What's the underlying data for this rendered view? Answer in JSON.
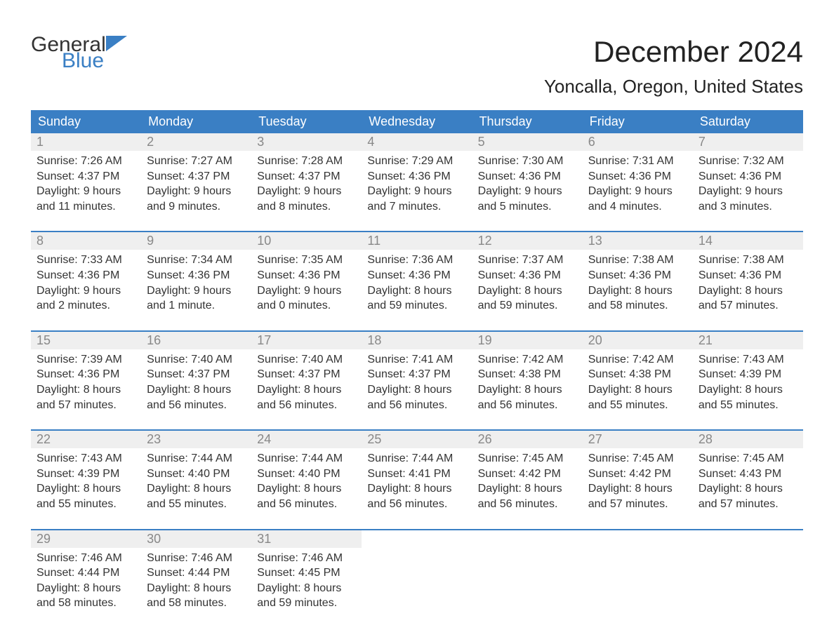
{
  "brand": {
    "word1": "General",
    "word2": "Blue",
    "color1": "#333333",
    "color2": "#3a7fc4"
  },
  "title": "December 2024",
  "location": "Yoncalla, Oregon, United States",
  "colors": {
    "header_bg": "#3a7fc4",
    "header_text": "#ffffff",
    "daynum_bg": "#efefef",
    "daynum_text": "#888888",
    "body_text": "#333333",
    "accent_line": "#3a7fc4"
  },
  "fonts": {
    "title_pt": 42,
    "location_pt": 26,
    "header_pt": 18,
    "daynum_pt": 18,
    "body_pt": 16
  },
  "columns": [
    "Sunday",
    "Monday",
    "Tuesday",
    "Wednesday",
    "Thursday",
    "Friday",
    "Saturday"
  ],
  "weeks": [
    [
      {
        "n": 1,
        "sunrise": "7:26 AM",
        "sunset": "4:37 PM",
        "dl_h": 9,
        "dl_m": "11 minutes"
      },
      {
        "n": 2,
        "sunrise": "7:27 AM",
        "sunset": "4:37 PM",
        "dl_h": 9,
        "dl_m": "9 minutes"
      },
      {
        "n": 3,
        "sunrise": "7:28 AM",
        "sunset": "4:37 PM",
        "dl_h": 9,
        "dl_m": "8 minutes"
      },
      {
        "n": 4,
        "sunrise": "7:29 AM",
        "sunset": "4:36 PM",
        "dl_h": 9,
        "dl_m": "7 minutes"
      },
      {
        "n": 5,
        "sunrise": "7:30 AM",
        "sunset": "4:36 PM",
        "dl_h": 9,
        "dl_m": "5 minutes"
      },
      {
        "n": 6,
        "sunrise": "7:31 AM",
        "sunset": "4:36 PM",
        "dl_h": 9,
        "dl_m": "4 minutes"
      },
      {
        "n": 7,
        "sunrise": "7:32 AM",
        "sunset": "4:36 PM",
        "dl_h": 9,
        "dl_m": "3 minutes"
      }
    ],
    [
      {
        "n": 8,
        "sunrise": "7:33 AM",
        "sunset": "4:36 PM",
        "dl_h": 9,
        "dl_m": "2 minutes"
      },
      {
        "n": 9,
        "sunrise": "7:34 AM",
        "sunset": "4:36 PM",
        "dl_h": 9,
        "dl_m": "1 minute"
      },
      {
        "n": 10,
        "sunrise": "7:35 AM",
        "sunset": "4:36 PM",
        "dl_h": 9,
        "dl_m": "0 minutes"
      },
      {
        "n": 11,
        "sunrise": "7:36 AM",
        "sunset": "4:36 PM",
        "dl_h": 8,
        "dl_m": "59 minutes"
      },
      {
        "n": 12,
        "sunrise": "7:37 AM",
        "sunset": "4:36 PM",
        "dl_h": 8,
        "dl_m": "59 minutes"
      },
      {
        "n": 13,
        "sunrise": "7:38 AM",
        "sunset": "4:36 PM",
        "dl_h": 8,
        "dl_m": "58 minutes"
      },
      {
        "n": 14,
        "sunrise": "7:38 AM",
        "sunset": "4:36 PM",
        "dl_h": 8,
        "dl_m": "57 minutes"
      }
    ],
    [
      {
        "n": 15,
        "sunrise": "7:39 AM",
        "sunset": "4:36 PM",
        "dl_h": 8,
        "dl_m": "57 minutes"
      },
      {
        "n": 16,
        "sunrise": "7:40 AM",
        "sunset": "4:37 PM",
        "dl_h": 8,
        "dl_m": "56 minutes"
      },
      {
        "n": 17,
        "sunrise": "7:40 AM",
        "sunset": "4:37 PM",
        "dl_h": 8,
        "dl_m": "56 minutes"
      },
      {
        "n": 18,
        "sunrise": "7:41 AM",
        "sunset": "4:37 PM",
        "dl_h": 8,
        "dl_m": "56 minutes"
      },
      {
        "n": 19,
        "sunrise": "7:42 AM",
        "sunset": "4:38 PM",
        "dl_h": 8,
        "dl_m": "56 minutes"
      },
      {
        "n": 20,
        "sunrise": "7:42 AM",
        "sunset": "4:38 PM",
        "dl_h": 8,
        "dl_m": "55 minutes"
      },
      {
        "n": 21,
        "sunrise": "7:43 AM",
        "sunset": "4:39 PM",
        "dl_h": 8,
        "dl_m": "55 minutes"
      }
    ],
    [
      {
        "n": 22,
        "sunrise": "7:43 AM",
        "sunset": "4:39 PM",
        "dl_h": 8,
        "dl_m": "55 minutes"
      },
      {
        "n": 23,
        "sunrise": "7:44 AM",
        "sunset": "4:40 PM",
        "dl_h": 8,
        "dl_m": "55 minutes"
      },
      {
        "n": 24,
        "sunrise": "7:44 AM",
        "sunset": "4:40 PM",
        "dl_h": 8,
        "dl_m": "56 minutes"
      },
      {
        "n": 25,
        "sunrise": "7:44 AM",
        "sunset": "4:41 PM",
        "dl_h": 8,
        "dl_m": "56 minutes"
      },
      {
        "n": 26,
        "sunrise": "7:45 AM",
        "sunset": "4:42 PM",
        "dl_h": 8,
        "dl_m": "56 minutes"
      },
      {
        "n": 27,
        "sunrise": "7:45 AM",
        "sunset": "4:42 PM",
        "dl_h": 8,
        "dl_m": "57 minutes"
      },
      {
        "n": 28,
        "sunrise": "7:45 AM",
        "sunset": "4:43 PM",
        "dl_h": 8,
        "dl_m": "57 minutes"
      }
    ],
    [
      {
        "n": 29,
        "sunrise": "7:46 AM",
        "sunset": "4:44 PM",
        "dl_h": 8,
        "dl_m": "58 minutes"
      },
      {
        "n": 30,
        "sunrise": "7:46 AM",
        "sunset": "4:44 PM",
        "dl_h": 8,
        "dl_m": "58 minutes"
      },
      {
        "n": 31,
        "sunrise": "7:46 AM",
        "sunset": "4:45 PM",
        "dl_h": 8,
        "dl_m": "59 minutes"
      },
      null,
      null,
      null,
      null
    ]
  ],
  "labels": {
    "sunrise": "Sunrise:",
    "sunset": "Sunset:",
    "daylight": "Daylight:",
    "hours": "hours",
    "and": "and"
  }
}
